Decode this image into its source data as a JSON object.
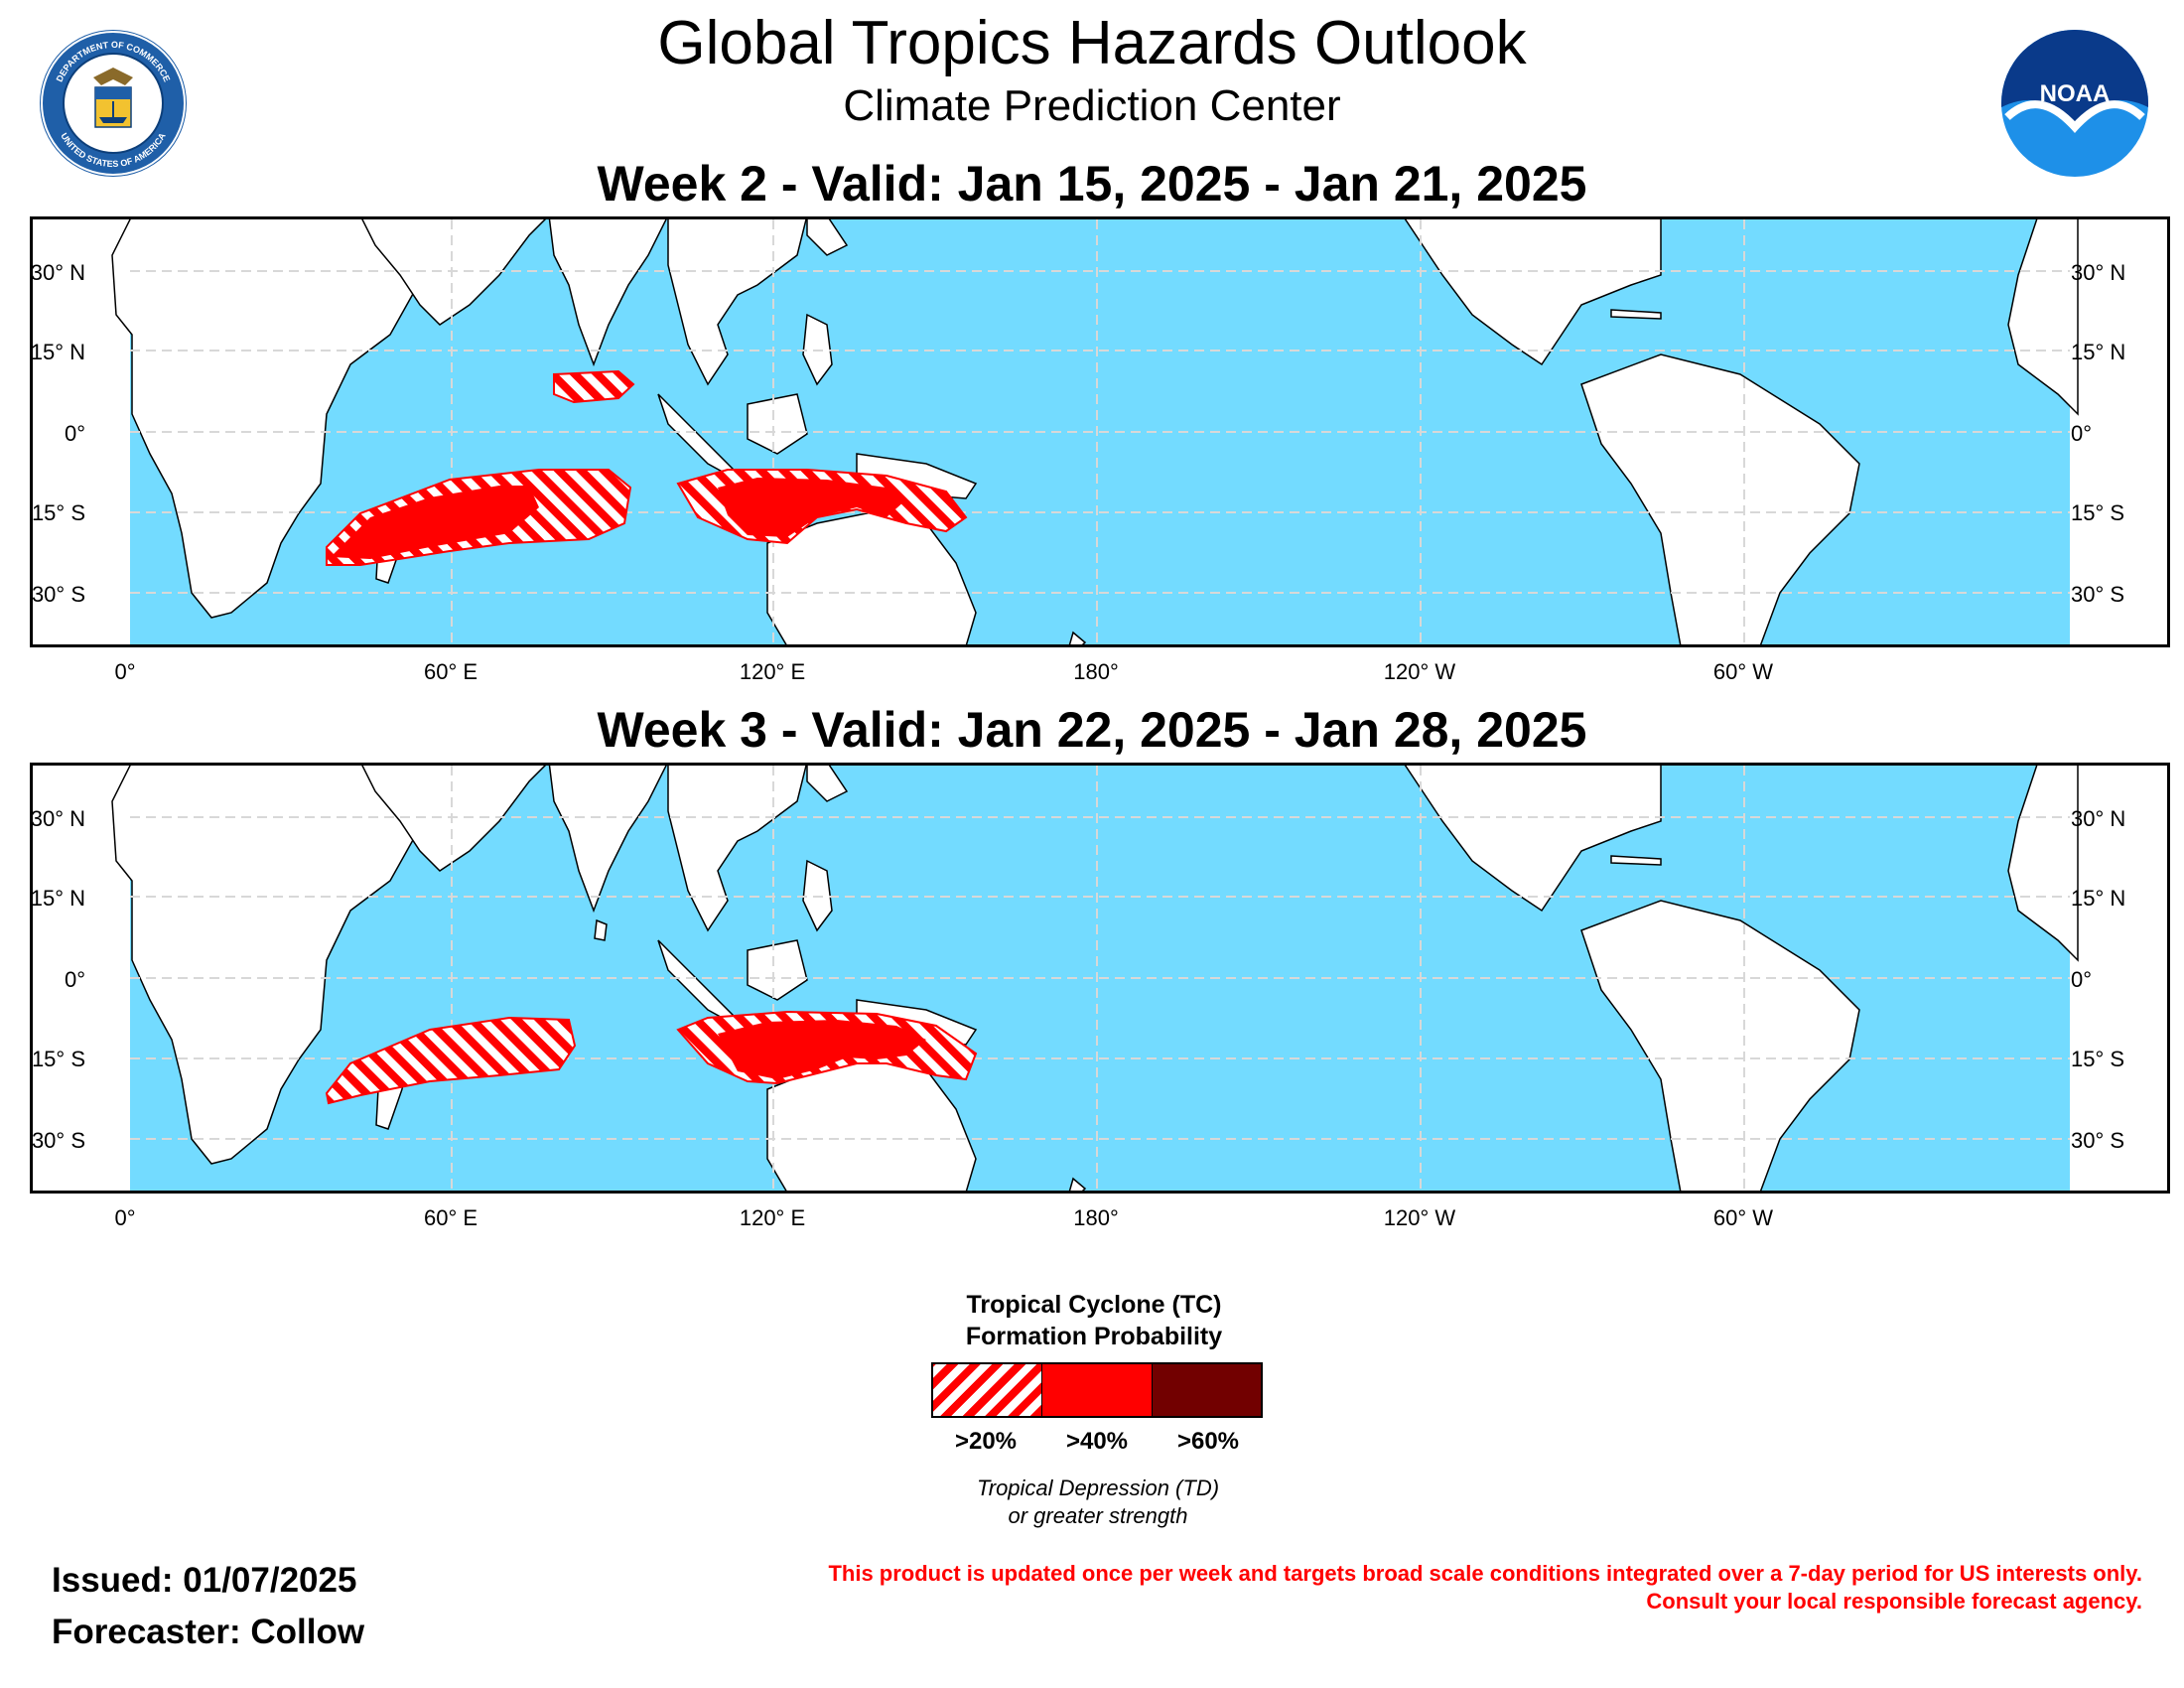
{
  "header": {
    "title": "Global Tropics Hazards Outlook",
    "subtitle": "Climate Prediction Center"
  },
  "logos": {
    "left": {
      "name": "department-of-commerce-seal",
      "ring_text_top": "DEPARTMENT OF COMMERCE",
      "ring_text_bottom": "UNITED STATES OF AMERICA"
    },
    "right": {
      "name": "noaa-logo",
      "text": "NOAA"
    }
  },
  "panels": [
    {
      "title": "Week 2 - Valid: Jan 15, 2025 - Jan 21, 2025"
    },
    {
      "title": "Week 3 - Valid: Jan 22, 2025 - Jan 28, 2025"
    }
  ],
  "axes": {
    "lat_labels_left": [
      "30° N",
      "15° N",
      "0°",
      "15° S",
      "30° S"
    ],
    "lat_labels_right": [
      "30° N",
      "15° N",
      "0°",
      "15° S",
      "30° S"
    ],
    "lon_labels": [
      "0°",
      "60° E",
      "120° E",
      "180°",
      "120° W",
      "60° W"
    ]
  },
  "legend": {
    "title_line1": "Tropical Cyclone (TC)",
    "title_line2": "Formation Probability",
    "categories": [
      ">20%",
      ">40%",
      ">60%"
    ],
    "colors": {
      "hatched": "#ff0000",
      "forty": "#ff0000",
      "sixty": "#720000"
    },
    "note_line1": "Tropical Depression (TD)",
    "note_line2": "or greater strength"
  },
  "footer": {
    "issued": "Issued: 01/07/2025",
    "forecaster": "Forecaster: Collow",
    "disclaimer_line1": "This product is updated once per week and targets broad scale conditions integrated over a 7-day period for US interests only.",
    "disclaimer_line2": "Consult your local responsible forecast agency."
  },
  "colors": {
    "ocean": "#73dbff",
    "land": "#ffffff",
    "hazard": "#ff0000",
    "text_alert": "#ff0000"
  }
}
